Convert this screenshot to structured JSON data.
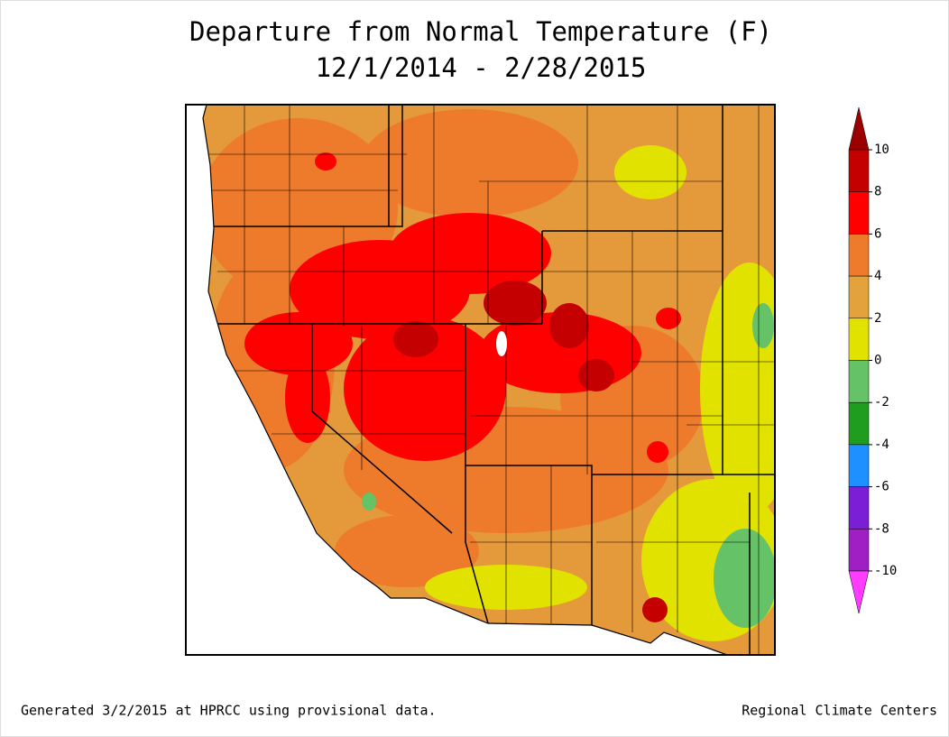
{
  "header": {
    "title": [
      "Departure from Normal Temperature (F)",
      "12/1/2014 - 2/28/2015"
    ]
  },
  "colorbar": {
    "ticks": [
      10,
      8,
      6,
      4,
      2,
      0,
      -2,
      -4,
      -6,
      -8,
      -10
    ],
    "colors": [
      "#9b0000",
      "#c40000",
      "#ff0000",
      "#ee7a2c",
      "#e3a23c",
      "#e2e200",
      "#66c266",
      "#1f9d1f",
      "#1e90ff",
      "#7a1fd6",
      "#a01fc4",
      "#ff3cff"
    ]
  },
  "footer": {
    "left": "Generated 3/2/2015 at HPRCC using provisional data.",
    "right": "Regional Climate Centers"
  }
}
